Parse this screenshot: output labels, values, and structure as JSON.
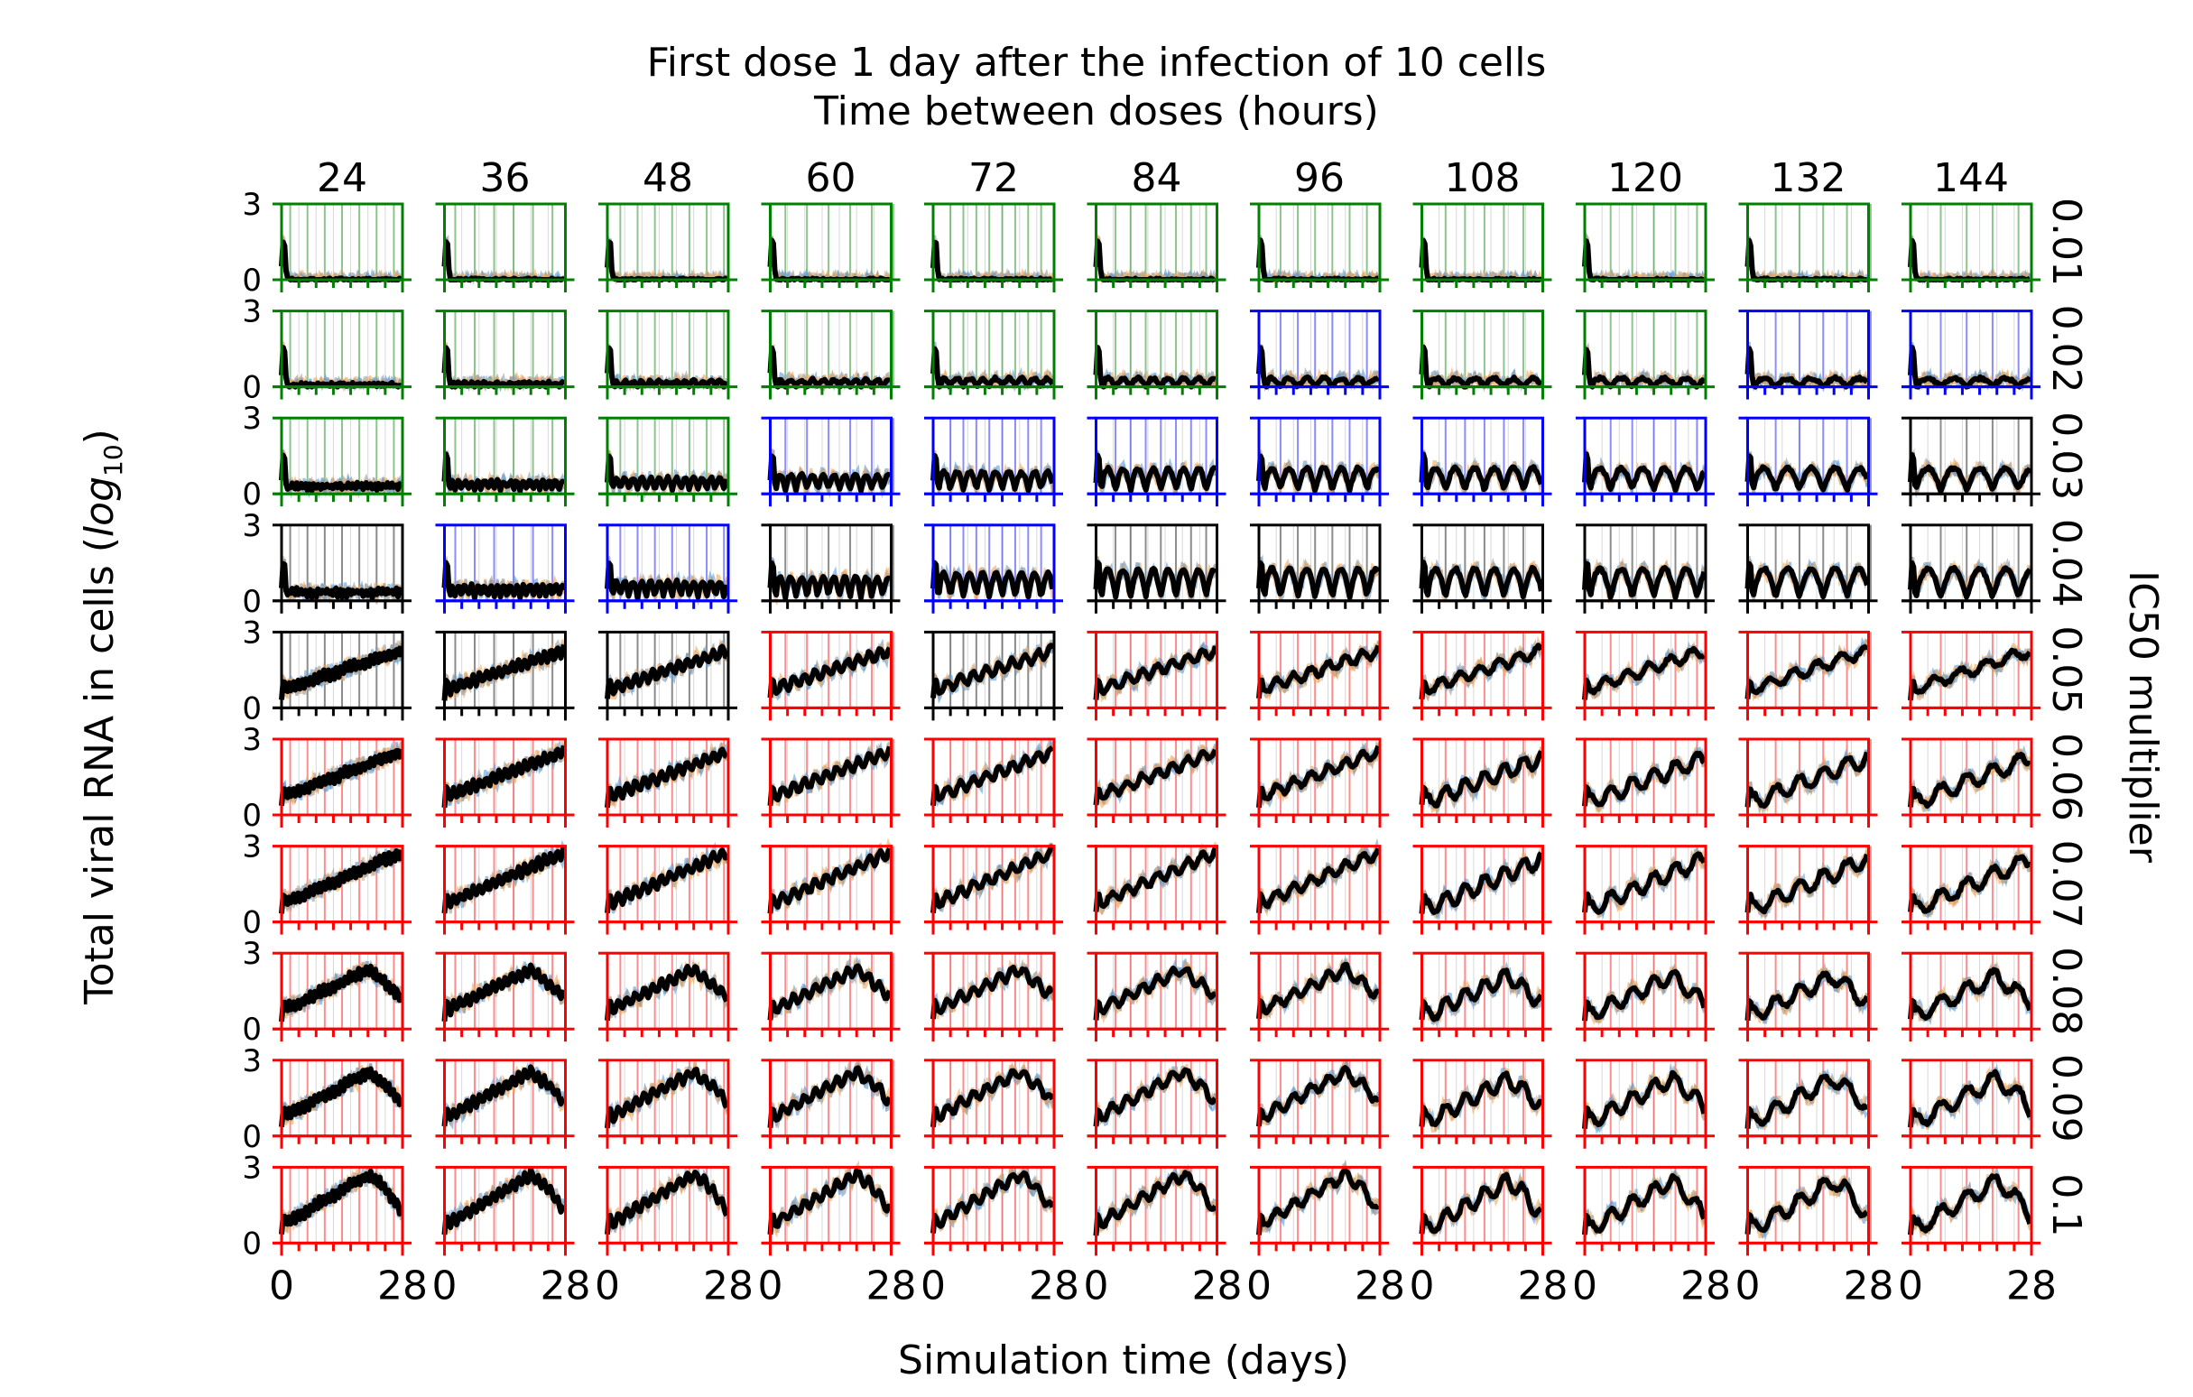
{
  "chart_data": {
    "type": "line-grid",
    "title_line1": "First dose 1 day after the infection of 10 cells",
    "title_line2": "Time between doses (hours)",
    "xlabel": "Simulation time (days)",
    "ylabel_main": "Total viral RNA in cells (",
    "ylabel_log": "log",
    "ylabel_sub": "10",
    "ylabel_close": ")",
    "row_axis_label": "IC50 multiplier",
    "columns": [
      "24",
      "36",
      "48",
      "60",
      "72",
      "84",
      "96",
      "108",
      "120",
      "132",
      "144"
    ],
    "rows": [
      "0.01",
      "0.02",
      "0.03",
      "0.04",
      "0.05",
      "0.06",
      "0.07",
      "0.08",
      "0.09",
      "0.1"
    ],
    "x_range": [
      0,
      28
    ],
    "y_range": [
      0,
      3
    ],
    "x_tick_labels": [
      "0",
      "28"
    ],
    "y_tick_labels": [
      "0",
      "3"
    ],
    "series": [
      "replicate runs (blue)",
      "replicate runs (orange)",
      "replicate runs (grey)",
      "mean (black)"
    ],
    "frame_colors": {
      "green": "#008000",
      "blue": "#0000ff",
      "black": "#000000",
      "red": "#ff0000"
    },
    "frame_grid": [
      [
        "green",
        "green",
        "green",
        "green",
        "green",
        "green",
        "green",
        "green",
        "green",
        "green",
        "green"
      ],
      [
        "green",
        "green",
        "green",
        "green",
        "green",
        "green",
        "blue",
        "green",
        "green",
        "blue",
        "blue"
      ],
      [
        "green",
        "green",
        "green",
        "blue",
        "blue",
        "blue",
        "blue",
        "blue",
        "blue",
        "blue",
        "black"
      ],
      [
        "black",
        "blue",
        "blue",
        "black",
        "blue",
        "black",
        "black",
        "black",
        "black",
        "black",
        "black"
      ],
      [
        "black",
        "black",
        "black",
        "red",
        "black",
        "red",
        "red",
        "red",
        "red",
        "red",
        "red"
      ],
      [
        "red",
        "red",
        "red",
        "red",
        "red",
        "red",
        "red",
        "red",
        "red",
        "red",
        "red"
      ],
      [
        "red",
        "red",
        "red",
        "red",
        "red",
        "red",
        "red",
        "red",
        "red",
        "red",
        "red"
      ],
      [
        "red",
        "red",
        "red",
        "red",
        "red",
        "red",
        "red",
        "red",
        "red",
        "red",
        "red"
      ],
      [
        "red",
        "red",
        "red",
        "red",
        "red",
        "red",
        "red",
        "red",
        "red",
        "red",
        "red"
      ],
      [
        "red",
        "red",
        "red",
        "red",
        "red",
        "red",
        "red",
        "red",
        "red",
        "red",
        "red"
      ]
    ],
    "series_colors": {
      "blue": "#5b9bd5",
      "orange": "#f2a65a",
      "grey": "#9a9a9a",
      "mean": "#000000"
    }
  }
}
